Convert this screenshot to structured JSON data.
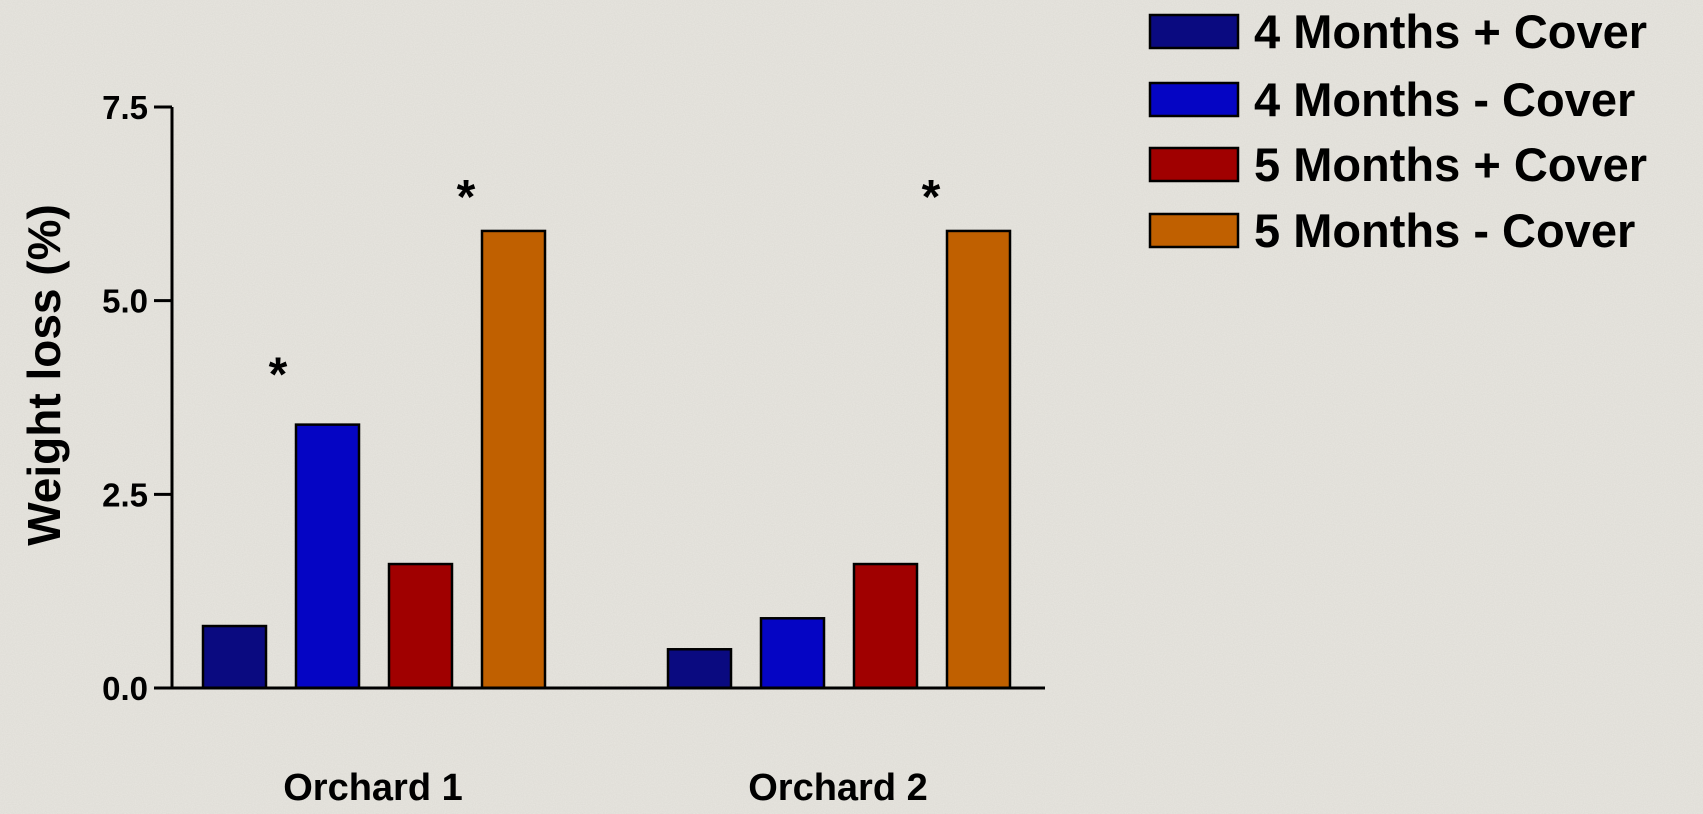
{
  "chart_data": {
    "type": "bar",
    "title": "",
    "xlabel": "",
    "ylabel": "Weight loss (%)",
    "ylim": [
      0,
      7.5
    ],
    "yticks": [
      "0.0",
      "2.5",
      "5.0",
      "7.5"
    ],
    "categories": [
      "Orchard 1",
      "Orchard 2"
    ],
    "series": [
      {
        "name": "4 Months + Cover",
        "color": "#0a0a80",
        "values": [
          0.8,
          0.5
        ],
        "significant": [
          false,
          false
        ]
      },
      {
        "name": "4 Months - Cover",
        "color": "#0505c4",
        "values": [
          3.4,
          0.9
        ],
        "significant": [
          true,
          false
        ]
      },
      {
        "name": "5 Months + Cover",
        "color": "#a00000",
        "values": [
          1.6,
          1.6
        ],
        "significant": [
          false,
          false
        ]
      },
      {
        "name": "5 Months - Cover",
        "color": "#c06000",
        "values": [
          5.9,
          5.9
        ],
        "significant": [
          true,
          true
        ]
      }
    ],
    "significance_marker": "*",
    "grid": false,
    "legend_position": "top-right"
  }
}
